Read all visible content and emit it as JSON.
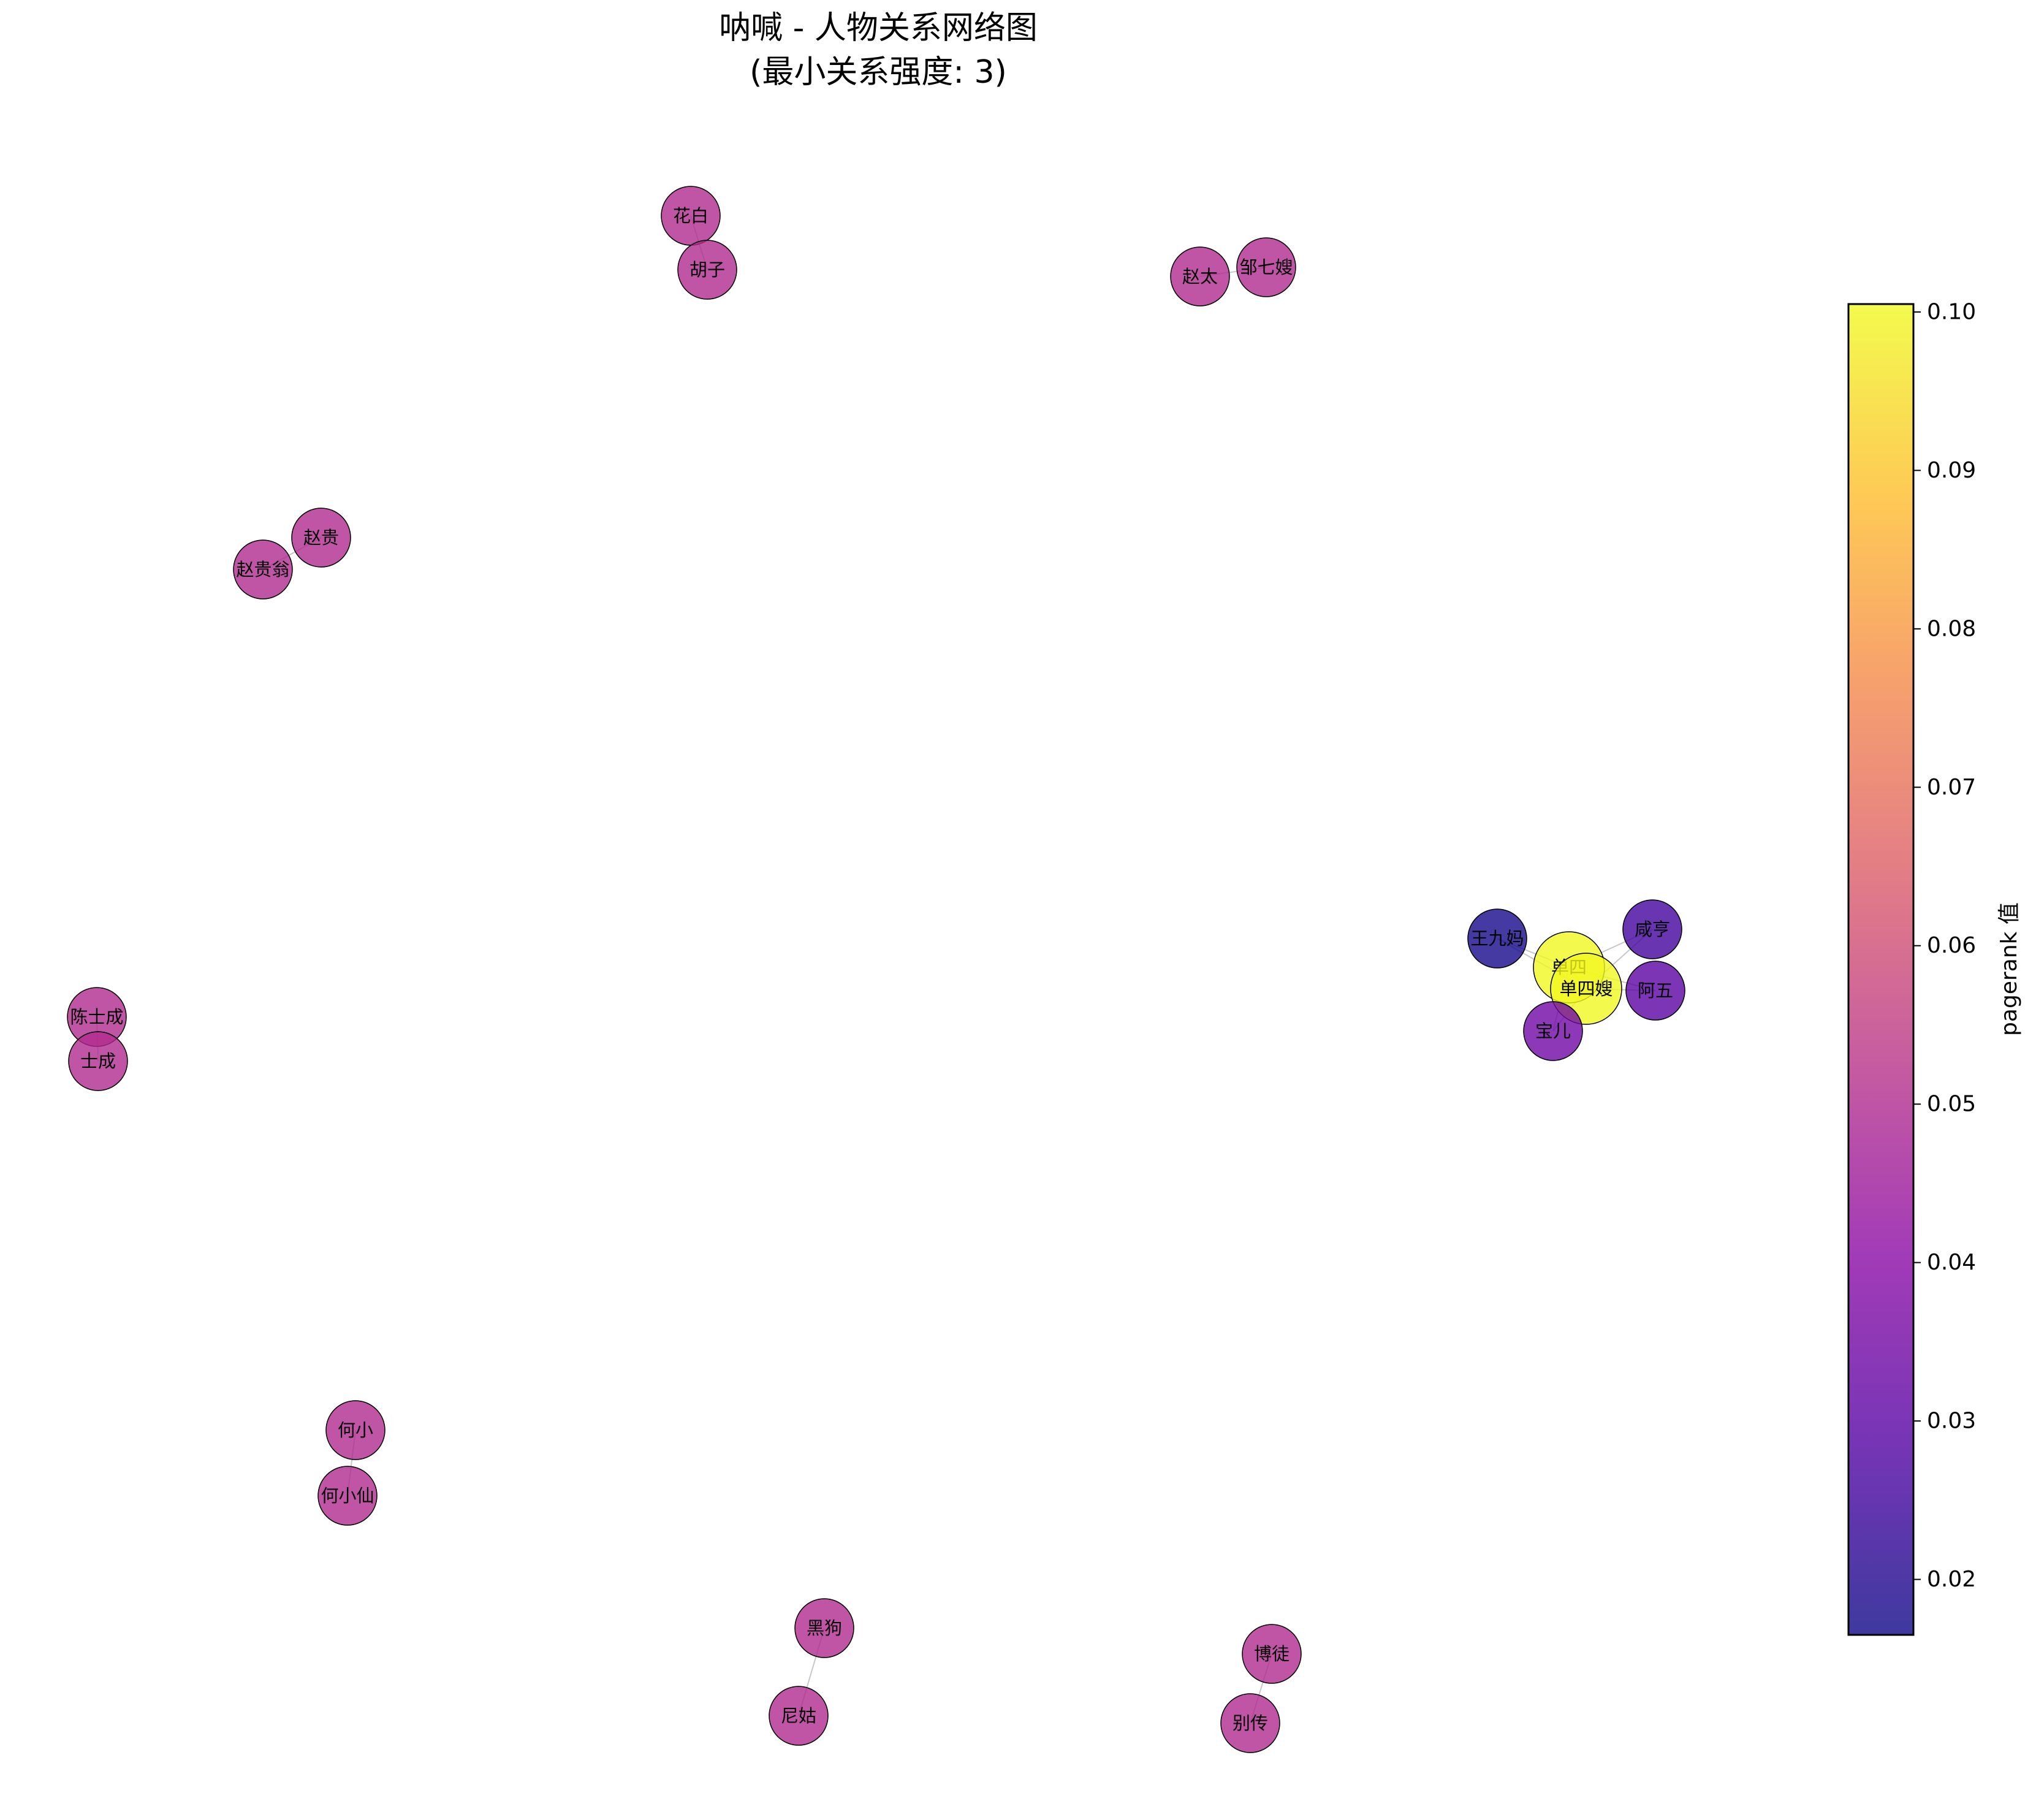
{
  "title": "呐喊 - 人物关系网络图",
  "subtitle": "(最小关系强度: 3)",
  "colorbar": {
    "label": "pagerank 值",
    "min": 0.0165,
    "max": 0.1005,
    "ticks": [
      "0.02",
      "0.03",
      "0.04",
      "0.05",
      "0.06",
      "0.07",
      "0.08",
      "0.09",
      "0.10"
    ],
    "colormap": [
      "#0d0887",
      "#5302a3",
      "#8b0aa5",
      "#b83289",
      "#db5c68",
      "#f48849",
      "#febd2a",
      "#f0f921"
    ]
  },
  "nodes": [
    {
      "id": "huabai",
      "label": "花白",
      "pagerank": 0.0505
    },
    {
      "id": "huzi",
      "label": "胡子",
      "pagerank": 0.0505
    },
    {
      "id": "zhaotai",
      "label": "赵太",
      "pagerank": 0.0505
    },
    {
      "id": "zouqisao",
      "label": "邹七嫂",
      "pagerank": 0.0505
    },
    {
      "id": "zhaogui",
      "label": "赵贵",
      "pagerank": 0.0505
    },
    {
      "id": "zhaoguiweng",
      "label": "赵贵翁",
      "pagerank": 0.0505
    },
    {
      "id": "chenshicheng",
      "label": "陈士成",
      "pagerank": 0.0505
    },
    {
      "id": "shicheng",
      "label": "士成",
      "pagerank": 0.0505
    },
    {
      "id": "wangjiuma",
      "label": "王九妈",
      "pagerank": 0.018
    },
    {
      "id": "xianheng",
      "label": "咸亨",
      "pagerank": 0.026
    },
    {
      "id": "shansi",
      "label": "单四",
      "pagerank": 0.1
    },
    {
      "id": "shansisao",
      "label": "单四嫂",
      "pagerank": 0.1
    },
    {
      "id": "awu",
      "label": "阿五",
      "pagerank": 0.03
    },
    {
      "id": "baoer",
      "label": "宝儿",
      "pagerank": 0.035
    },
    {
      "id": "hexiao",
      "label": "何小",
      "pagerank": 0.0505
    },
    {
      "id": "hexiaoxian",
      "label": "何小仙",
      "pagerank": 0.0505
    },
    {
      "id": "heigou",
      "label": "黑狗",
      "pagerank": 0.0505
    },
    {
      "id": "nigu",
      "label": "尼姑",
      "pagerank": 0.0505
    },
    {
      "id": "botu",
      "label": "博徒",
      "pagerank": 0.0505
    },
    {
      "id": "biezhuan",
      "label": "别传",
      "pagerank": 0.0505
    }
  ],
  "edges": [
    [
      "huabai",
      "huzi"
    ],
    [
      "zhaotai",
      "zouqisao"
    ],
    [
      "zhaogui",
      "zhaoguiweng"
    ],
    [
      "chenshicheng",
      "shicheng"
    ],
    [
      "wangjiuma",
      "shansi"
    ],
    [
      "wangjiuma",
      "shansisao"
    ],
    [
      "xianheng",
      "shansi"
    ],
    [
      "xianheng",
      "shansisao"
    ],
    [
      "shansi",
      "shansisao"
    ],
    [
      "shansi",
      "awu"
    ],
    [
      "shansisao",
      "awu"
    ],
    [
      "shansi",
      "baoer"
    ],
    [
      "shansisao",
      "baoer"
    ],
    [
      "hexiao",
      "hexiaoxian"
    ],
    [
      "heigou",
      "nigu"
    ],
    [
      "botu",
      "biezhuan"
    ]
  ]
}
